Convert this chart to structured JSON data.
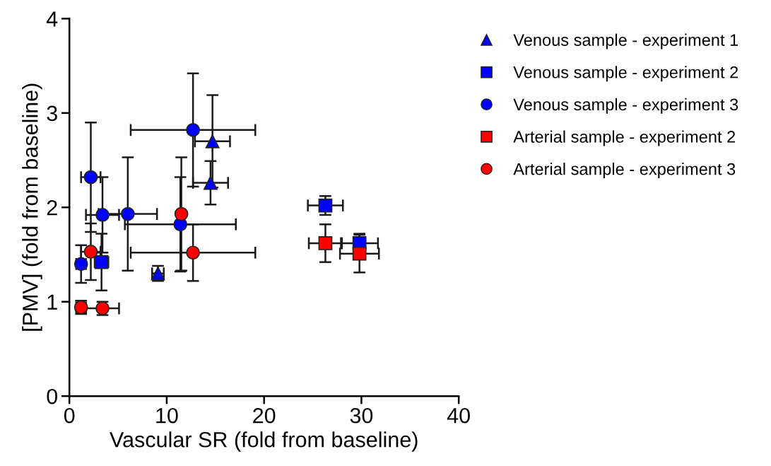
{
  "chart_data": {
    "type": "scatter",
    "xlabel": "Vascular SR (fold from baseline)",
    "ylabel": "[PMV] (fold from baseline)",
    "xlim": [
      0,
      40
    ],
    "xticks": [
      0,
      10,
      20,
      30,
      40
    ],
    "ylim": [
      0,
      4
    ],
    "yticks": [
      0,
      1,
      2,
      3,
      4
    ],
    "grid": false,
    "legend": "top right",
    "series": [
      {
        "name": "Venous sample - experiment 1",
        "color": "#0000ff",
        "marker": "triangle",
        "x": [
          14.7,
          14.5,
          9.1
        ],
        "values": [
          2.7,
          2.26,
          1.3
        ],
        "errors": [
          0.49,
          0.23,
          0.08
        ],
        "xerrors": [
          1.8,
          1.8,
          0.6
        ]
      },
      {
        "name": "Venous sample - experiment 2",
        "color": "#0000ff",
        "marker": "square",
        "x": [
          3.3,
          26.3,
          29.8
        ],
        "values": [
          1.42,
          2.02,
          1.62
        ],
        "errors": [
          0.3,
          0.1,
          0.1
        ],
        "xerrors": [
          0.7,
          1.8,
          1.9
        ]
      },
      {
        "name": "Venous sample - experiment 3",
        "color": "#0000ff",
        "marker": "circle",
        "x": [
          2.2,
          3.4,
          6.0,
          11.4,
          12.7,
          1.2
        ],
        "values": [
          2.32,
          1.92,
          1.93,
          1.82,
          2.82,
          1.4
        ],
        "errors": [
          0.58,
          0.4,
          0.6,
          0.5,
          0.6,
          0.2
        ],
        "xerrors": [
          1.0,
          1.7,
          3.0,
          5.7,
          6.4,
          0.5
        ]
      },
      {
        "name": "Arterial sample - experiment 2",
        "color": "#ff0000",
        "marker": "square",
        "x": [
          26.3,
          29.8
        ],
        "values": [
          1.62,
          1.51
        ],
        "errors": [
          0.2,
          0.2
        ],
        "xerrors": [
          1.7,
          2.0
        ]
      },
      {
        "name": "Arterial sample - experiment 3",
        "color": "#ff0000",
        "marker": "circle",
        "x": [
          2.2,
          12.7,
          11.5,
          1.2,
          3.4
        ],
        "values": [
          1.53,
          1.52,
          1.93,
          0.94,
          0.93
        ],
        "errors": [
          0.3,
          0.3,
          0.6,
          0.07,
          0.07
        ],
        "xerrors": [
          1.0,
          6.4,
          null,
          0.5,
          1.7
        ]
      }
    ]
  }
}
